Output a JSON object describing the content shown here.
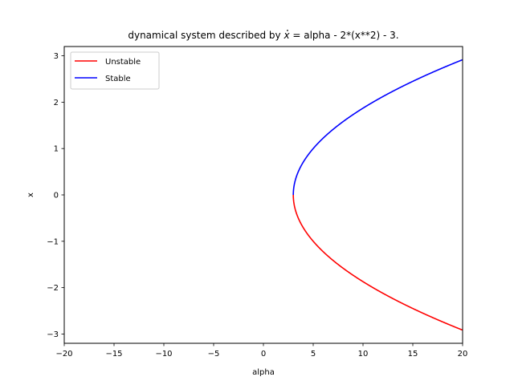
{
  "chart_data": {
    "type": "line",
    "title_prefix": "dynamical system described by ",
    "title_var": "x",
    "title_suffix": " = alpha - 2*(x**2) - 3.",
    "xlabel": "alpha",
    "ylabel": "x",
    "xlim": [
      -20,
      20
    ],
    "ylim": [
      -3.2,
      3.2
    ],
    "xticks": [
      -20,
      -15,
      -10,
      -5,
      0,
      5,
      10,
      15,
      20
    ],
    "xtick_labels": [
      "−20",
      "−15",
      "−10",
      "−5",
      "0",
      "5",
      "10",
      "15",
      "20"
    ],
    "yticks": [
      -3,
      -2,
      -1,
      0,
      1,
      2,
      3
    ],
    "ytick_labels": [
      "−3",
      "−2",
      "−1",
      "0",
      "1",
      "2",
      "3"
    ],
    "grid": false,
    "legend_position": "upper-left",
    "series": [
      {
        "name": "Unstable",
        "color": "#ff0000",
        "equation": "x = -sqrt((alpha - 3) / 2)",
        "alpha_range": [
          3,
          20
        ],
        "x_range": [
          -2.92,
          0
        ]
      },
      {
        "name": "Stable",
        "color": "#0000ff",
        "equation": "x = sqrt((alpha - 3) / 2)",
        "alpha_range": [
          3,
          20
        ],
        "x_range": [
          0,
          2.92
        ]
      }
    ],
    "legend": {
      "entries": [
        "Unstable",
        "Stable"
      ]
    }
  }
}
